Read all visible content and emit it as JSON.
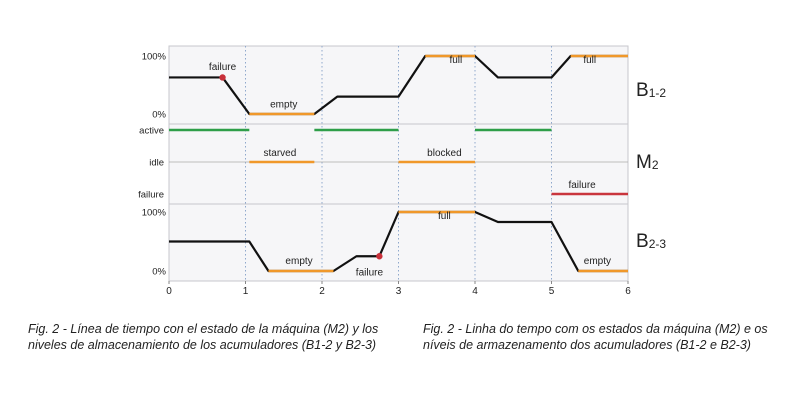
{
  "chart_data": {
    "type": "line",
    "x_ticks": [
      "0",
      "1",
      "2",
      "3",
      "4",
      "5",
      "6"
    ],
    "xlim": [
      0,
      6
    ],
    "panels": [
      {
        "id": "b12",
        "label_main": "B",
        "label_sub": "1-2",
        "y_ticks": [
          "100%",
          "0%"
        ],
        "ylim": [
          0,
          100
        ],
        "line": [
          [
            0,
            63
          ],
          [
            0.7,
            63
          ],
          [
            1.05,
            0
          ],
          [
            1.25,
            0
          ],
          [
            1.9,
            0
          ],
          [
            2.2,
            30
          ],
          [
            3.0,
            30
          ],
          [
            3.35,
            100
          ],
          [
            4.0,
            100
          ],
          [
            4.3,
            63
          ],
          [
            5.0,
            63
          ],
          [
            5.25,
            100
          ],
          [
            6.0,
            100
          ]
        ],
        "orange_segments": [
          [
            1.05,
            1.9
          ],
          [
            3.35,
            4.0
          ],
          [
            5.25,
            6.0
          ]
        ],
        "failure_point": [
          0.7,
          63
        ],
        "annotations": [
          {
            "text": "failure",
            "x": 0.7,
            "y": 76
          },
          {
            "text": "empty",
            "x": 1.5,
            "y": 11
          },
          {
            "text": "full",
            "x": 3.75,
            "y": 88
          },
          {
            "text": "full",
            "x": 5.5,
            "y": 88
          }
        ]
      },
      {
        "id": "m2",
        "label_main": "M",
        "label_sub": "2",
        "y_ticks": [
          "active",
          "idle",
          "failure"
        ],
        "segments": [
          {
            "state": "active",
            "x0": 0,
            "x1": 1.05,
            "color": "green"
          },
          {
            "state": "idle",
            "x0": 1.05,
            "x1": 1.9,
            "color": "orange"
          },
          {
            "state": "active",
            "x0": 1.9,
            "x1": 3.0,
            "color": "green"
          },
          {
            "state": "idle",
            "x0": 3.0,
            "x1": 4.0,
            "color": "orange"
          },
          {
            "state": "active",
            "x0": 4.0,
            "x1": 5.0,
            "color": "green"
          },
          {
            "state": "failure",
            "x0": 5.0,
            "x1": 6.0,
            "color": "red"
          }
        ],
        "annotations": [
          {
            "text": "starved",
            "x": 1.45,
            "state": "idle"
          },
          {
            "text": "blocked",
            "x": 3.6,
            "state": "idle"
          },
          {
            "text": "failure",
            "x": 5.4,
            "state": "failure"
          }
        ]
      },
      {
        "id": "b23",
        "label_main": "B",
        "label_sub": "2-3",
        "y_ticks": [
          "100%",
          "0%"
        ],
        "ylim": [
          0,
          100
        ],
        "line": [
          [
            0,
            50
          ],
          [
            1.05,
            50
          ],
          [
            1.3,
            0
          ],
          [
            2.15,
            0
          ],
          [
            2.45,
            25
          ],
          [
            2.75,
            25
          ],
          [
            3.0,
            100
          ],
          [
            4.0,
            100
          ],
          [
            4.3,
            83
          ],
          [
            5.0,
            83
          ],
          [
            5.35,
            0
          ],
          [
            6.0,
            0
          ]
        ],
        "orange_segments": [
          [
            1.3,
            2.15
          ],
          [
            3.0,
            4.0
          ],
          [
            5.35,
            6.0
          ]
        ],
        "failure_point": [
          2.75,
          25
        ],
        "annotations": [
          {
            "text": "empty",
            "x": 1.7,
            "y": 12
          },
          {
            "text": "failure",
            "x": 2.62,
            "y": -8
          },
          {
            "text": "full",
            "x": 3.6,
            "y": 88
          },
          {
            "text": "empty",
            "x": 5.6,
            "y": 12
          }
        ]
      }
    ]
  },
  "colors": {
    "line": "#111111",
    "orange": "#f0982a",
    "green": "#2e9e49",
    "red": "#c9353d",
    "failure_dot": "#c8303a",
    "panel_bg": "#f6f6f8",
    "panel_border": "#c7c7cc",
    "vgrid": "#8fa8cc"
  },
  "captions": {
    "es": "Fig. 2 - Línea de tiempo con el estado de la máquina (M2) y los niveles de almacenamiento de los acumuladores (B1-2 y B2-3)",
    "pt": "Fig. 2 - Linha do tempo com os estados da máquina (M2) e os níveis de armazenamento dos acumuladores (B1-2 e B2-3)"
  }
}
